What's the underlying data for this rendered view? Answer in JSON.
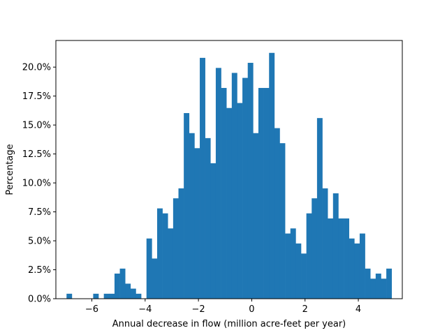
{
  "chart_data": {
    "type": "bar",
    "title": "",
    "xlabel": "Annual decrease in flow (million acre-feet per year)",
    "ylabel": "Percentage",
    "xlim": [
      -7.35,
      5.65
    ],
    "ylim": [
      0,
      22.3
    ],
    "x_ticks": [
      -6,
      -4,
      -2,
      0,
      2,
      4
    ],
    "x_tick_labels": [
      "−6",
      "−4",
      "−2",
      "0",
      "2",
      "4"
    ],
    "y_ticks": [
      0,
      2.5,
      5,
      7.5,
      10,
      12.5,
      15,
      17.5,
      20
    ],
    "y_tick_labels": [
      "0.0%",
      "2.5%",
      "5.0%",
      "7.5%",
      "10.0%",
      "12.5%",
      "15.0%",
      "17.5%",
      "20.0%"
    ],
    "bar_color": "#1f77b4",
    "grid": false,
    "bin_start": -6.95,
    "bin_width": 0.2,
    "values": [
      0.43,
      0,
      0,
      0,
      0,
      0.43,
      0,
      0.43,
      0.43,
      2.17,
      2.6,
      1.3,
      0.87,
      0.43,
      0,
      5.2,
      3.47,
      7.8,
      7.37,
      6.07,
      8.67,
      9.53,
      16.03,
      14.3,
      13.0,
      20.8,
      13.87,
      11.7,
      19.93,
      18.2,
      16.47,
      19.5,
      16.9,
      19.07,
      20.37,
      14.3,
      18.2,
      18.2,
      21.23,
      14.73,
      13.43,
      5.63,
      6.07,
      4.77,
      3.9,
      7.37,
      8.67,
      15.6,
      9.53,
      6.93,
      9.1,
      6.93,
      6.93,
      5.2,
      4.77,
      5.63,
      2.6,
      1.73,
      2.17,
      1.73,
      2.6
    ]
  }
}
